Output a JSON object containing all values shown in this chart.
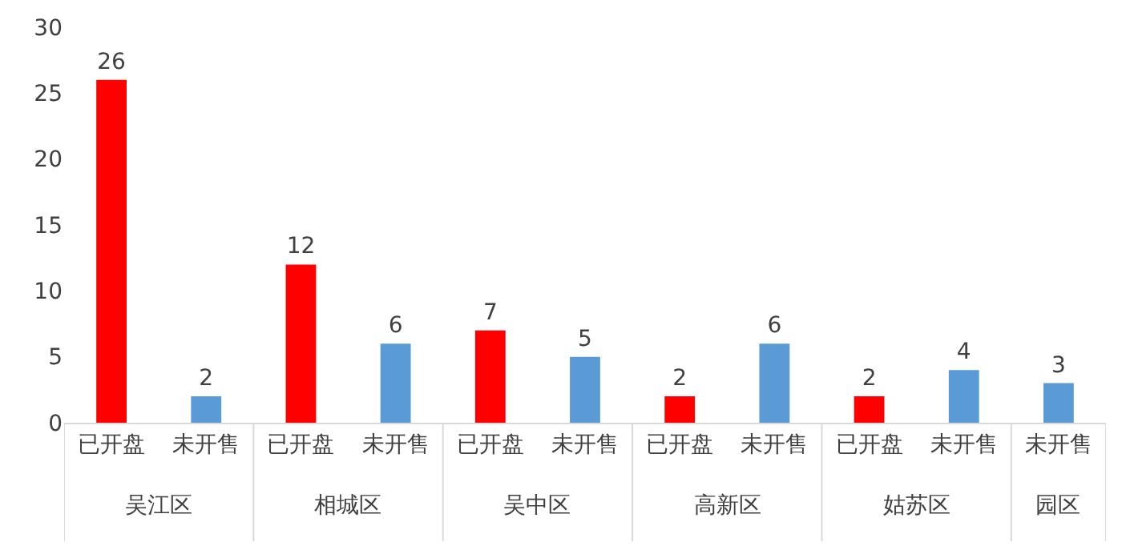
{
  "chart_data": {
    "type": "bar",
    "categories": [
      "已开盘",
      "未开售",
      "已开盘",
      "未开售",
      "已开盘",
      "未开售",
      "已开盘",
      "未开售",
      "已开盘",
      "未开售",
      "未开售"
    ],
    "values": [
      26,
      2,
      12,
      6,
      7,
      5,
      2,
      6,
      2,
      4,
      3
    ],
    "colors": [
      "#ff0000",
      "#5b9bd5",
      "#ff0000",
      "#5b9bd5",
      "#ff0000",
      "#5b9bd5",
      "#ff0000",
      "#5b9bd5",
      "#ff0000",
      "#5b9bd5",
      "#5b9bd5"
    ],
    "annotations": [
      "吴江区",
      "相城区",
      "吴中区",
      "高新区",
      "姑苏区",
      "园区"
    ],
    "ylim": [
      0,
      30
    ],
    "yticks": [
      0,
      5,
      10,
      15,
      20,
      25,
      30
    ],
    "data_labels": true
  }
}
